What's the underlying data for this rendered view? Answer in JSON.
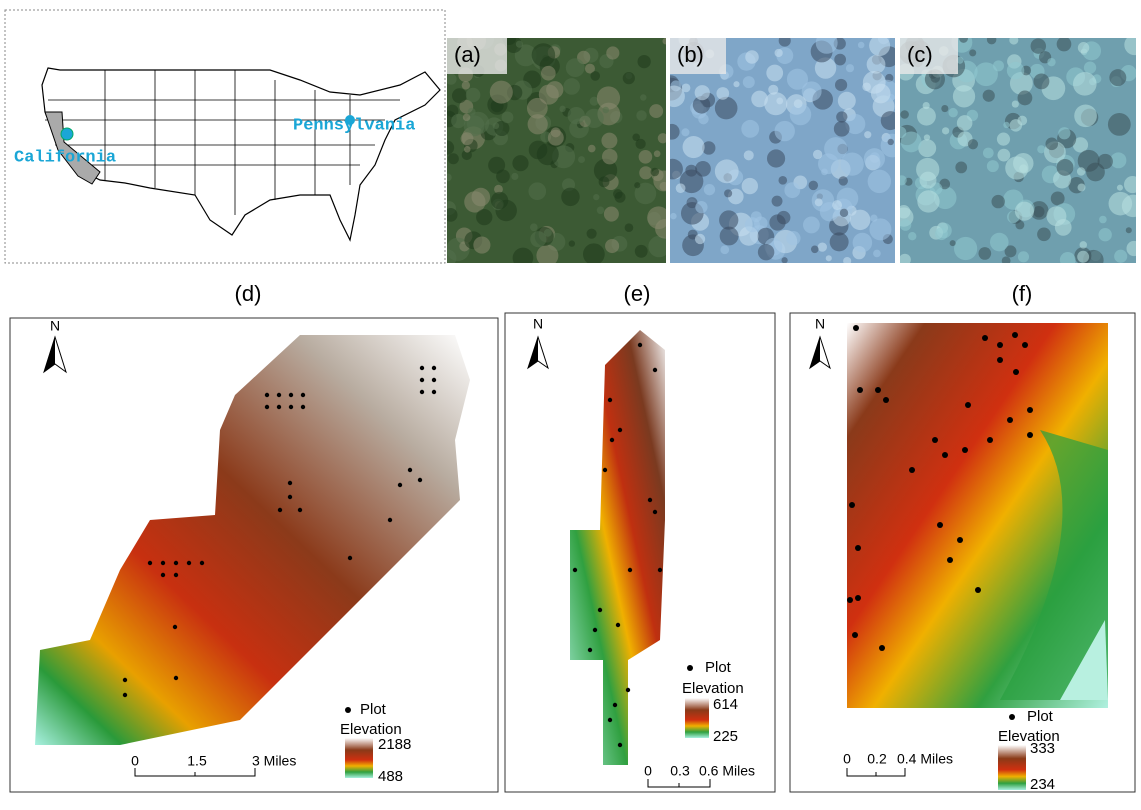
{
  "us_map": {
    "labels": [
      "California",
      "Pennsylvania"
    ]
  },
  "photos": [
    {
      "label": "(a)"
    },
    {
      "label": "(b)"
    },
    {
      "label": "(c)"
    }
  ],
  "panels": [
    {
      "label": "(d)",
      "north": "N",
      "legend": {
        "plot": "Plot",
        "title": "Elevation",
        "max": "2188",
        "min": "488"
      },
      "scale": [
        "0",
        "1.5",
        "3 Miles"
      ]
    },
    {
      "label": "(e)",
      "north": "N",
      "legend": {
        "plot": "Plot",
        "title": "Elevation",
        "max": "614",
        "min": "225"
      },
      "scale": [
        "0",
        "0.3",
        "0.6 Miles"
      ]
    },
    {
      "label": "(f)",
      "north": "N",
      "legend": {
        "plot": "Plot",
        "title": "Elevation",
        "max": "333",
        "min": "234"
      },
      "scale": [
        "0",
        "0.2",
        "0.4 Miles"
      ]
    }
  ]
}
